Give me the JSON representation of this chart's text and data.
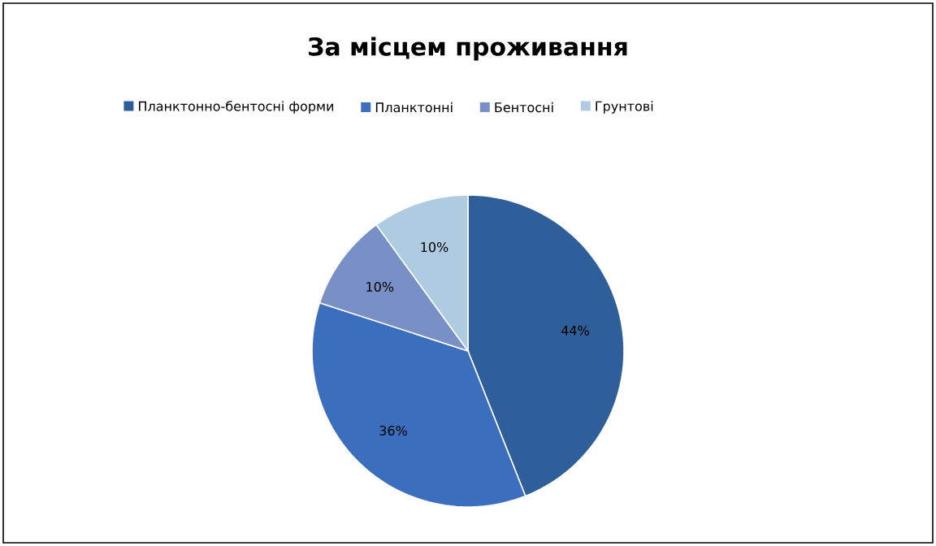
{
  "chart_data": {
    "type": "pie",
    "title": "За місцем проживання",
    "categories": [
      "Планктонно-бентосні форми",
      "Планктонні",
      "Бентосні",
      "Грунтові"
    ],
    "values": [
      44,
      36,
      10,
      10
    ],
    "colors": [
      "#2f5f9a",
      "#3b6ebd",
      "#7890c6",
      "#aecbe2"
    ],
    "value_labels": [
      "44%",
      "36%",
      "10%",
      "10%"
    ],
    "legend": "top"
  }
}
